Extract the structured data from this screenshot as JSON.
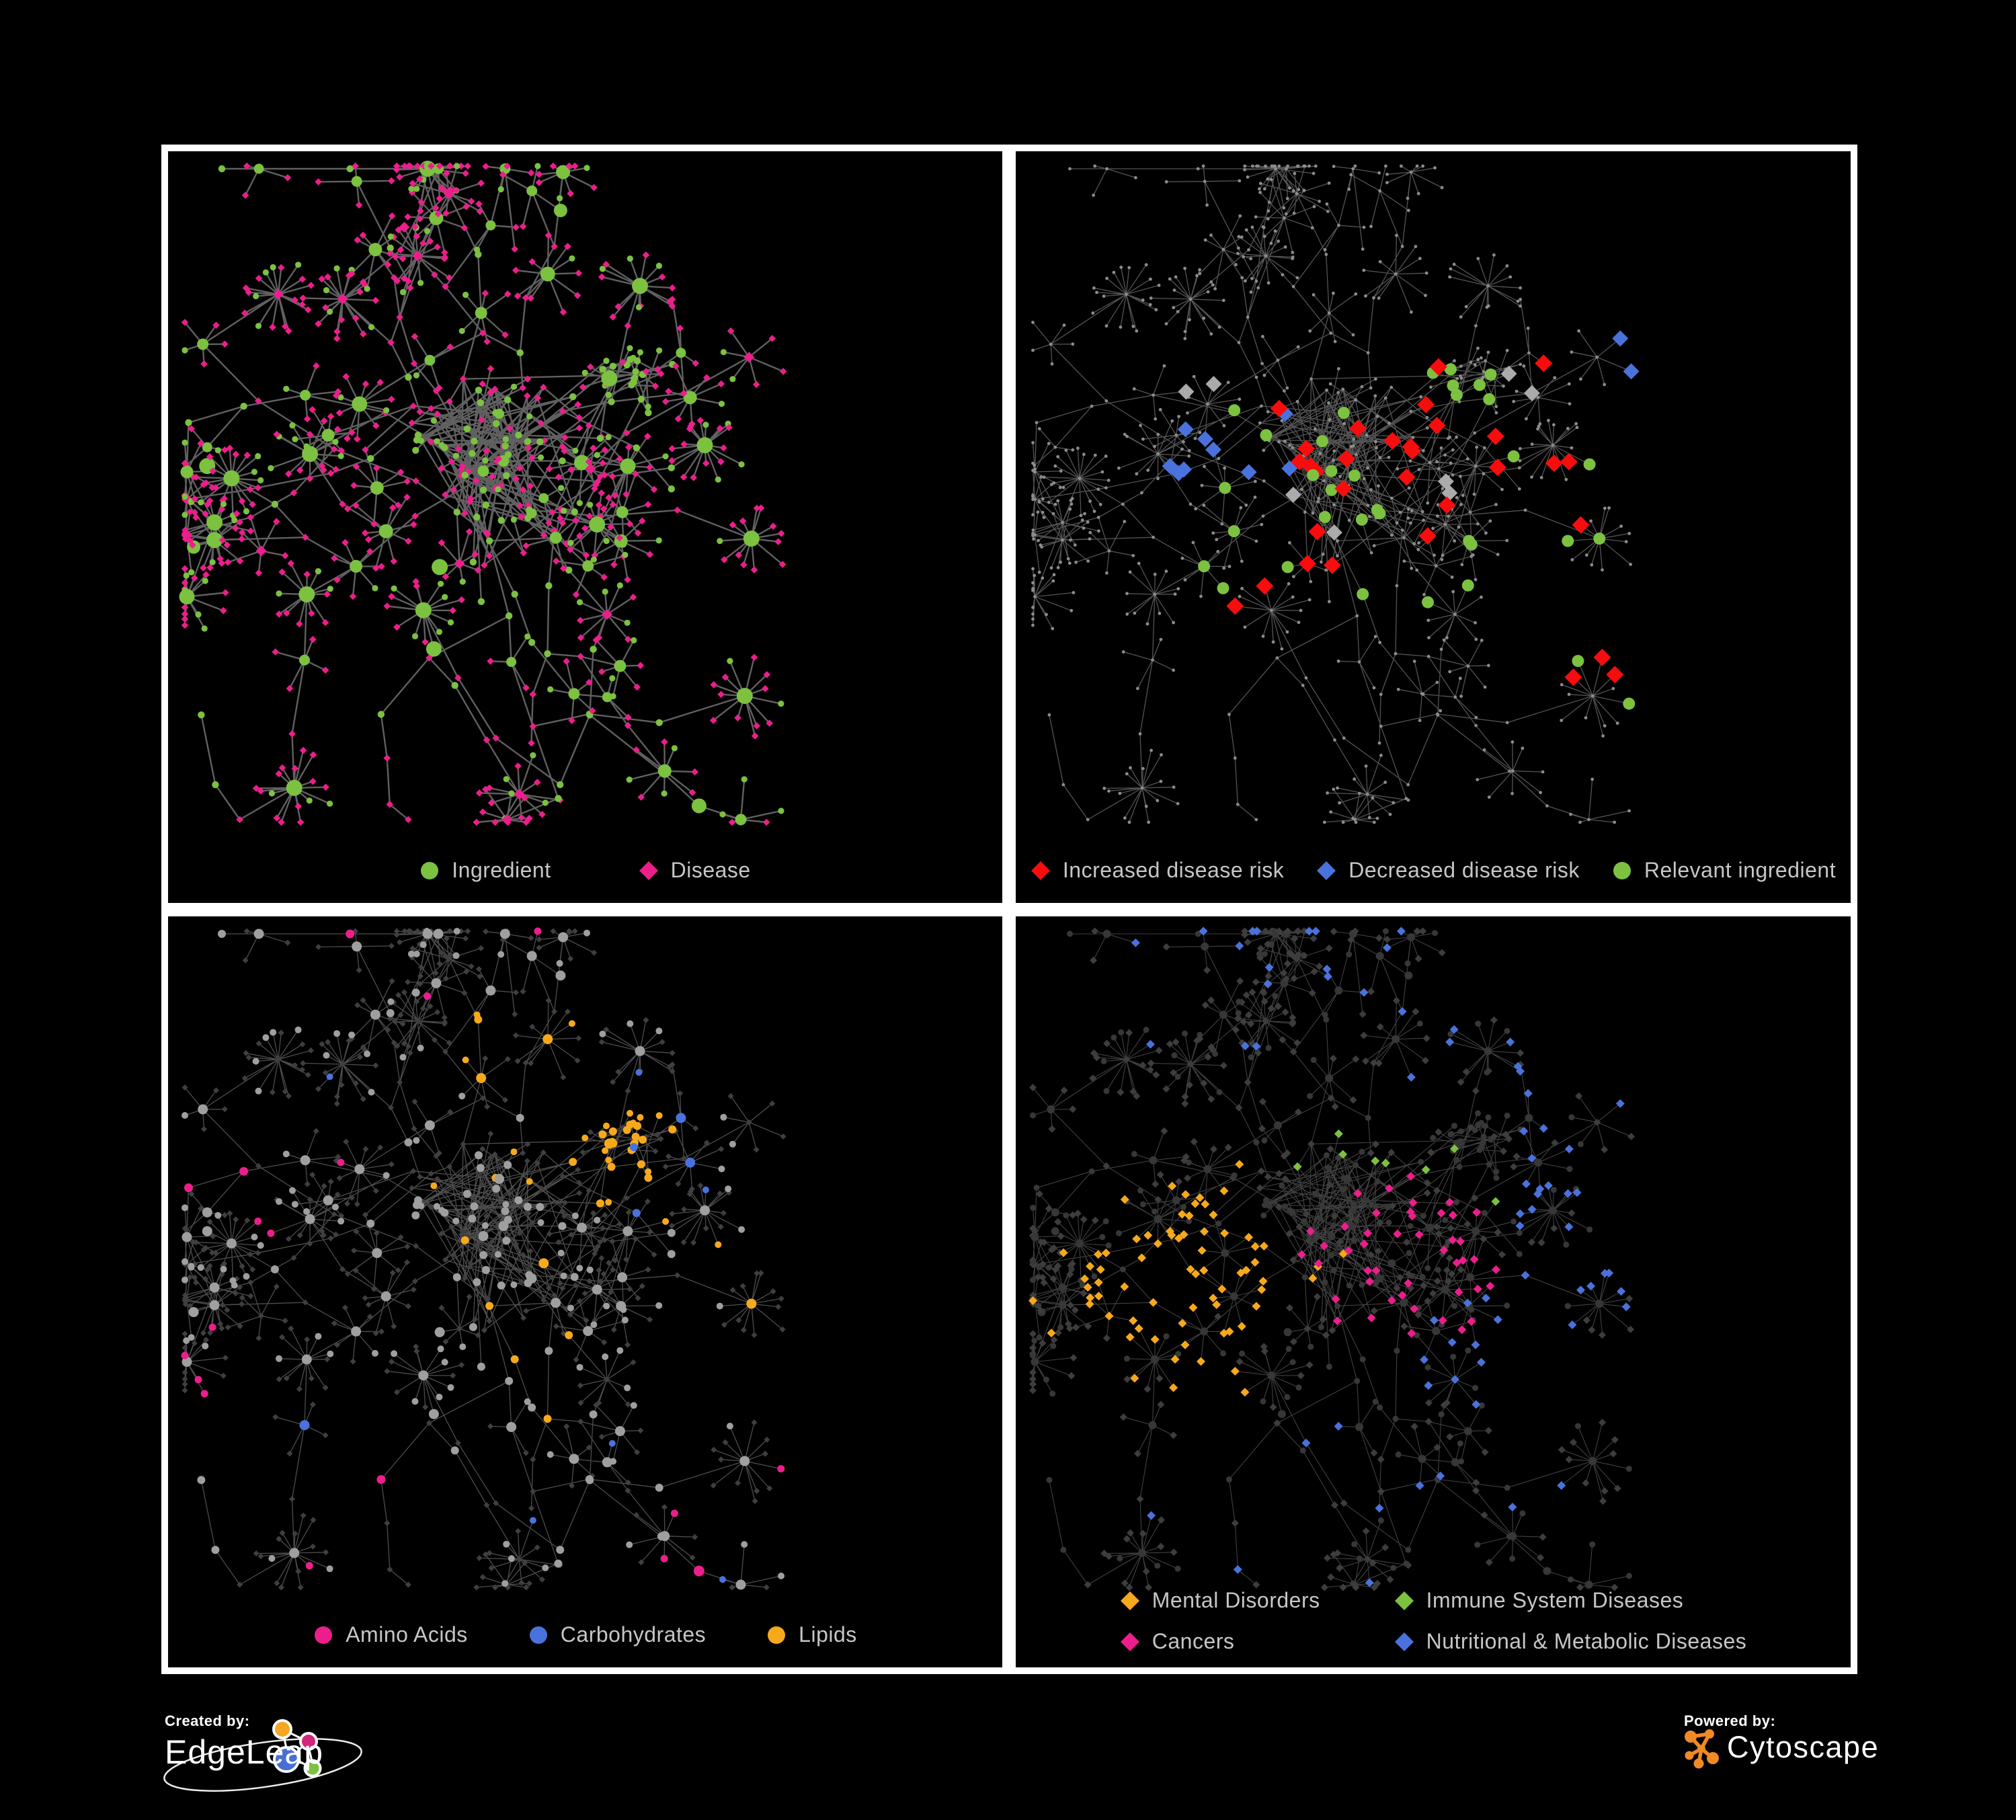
{
  "page": {
    "background": "#000000",
    "panel_border": "#ffffff",
    "legend_text_color": "#c6c6c6"
  },
  "panels": [
    {
      "name": "ingredient-disease-network",
      "legend": [
        {
          "shape": "circle",
          "color": "#7cc140",
          "label": "Ingredient"
        },
        {
          "shape": "diamond",
          "color": "#ec1e8c",
          "label": "Disease"
        }
      ],
      "style": {
        "edge": "#6a6a6a",
        "edge_width": 2.4,
        "edge_opacity": 0.9,
        "ingredient": "#7cc140",
        "disease": "#ec1e8c"
      }
    },
    {
      "name": "disease-risk-network",
      "legend": [
        {
          "shape": "diamond",
          "color": "#f70d0d",
          "label": "Increased disease risk"
        },
        {
          "shape": "diamond",
          "color": "#4a72dc",
          "label": "Decreased disease risk"
        },
        {
          "shape": "circle",
          "color": "#7cc140",
          "label": "Relevant ingredient"
        }
      ],
      "style": {
        "edge": "#5d5d5d",
        "edge_width": 1.3,
        "edge_opacity": 0.9,
        "base_node": "#8c8c8c",
        "increased": "#f70d0d",
        "decreased": "#4a72dc",
        "other_disease": "#ababab",
        "relevant": "#7cc140"
      }
    },
    {
      "name": "ingredient-class-network",
      "legend": [
        {
          "shape": "circle",
          "color": "#ec1e8c",
          "label": "Amino Acids"
        },
        {
          "shape": "circle",
          "color": "#4a72dc",
          "label": "Carbohydrates"
        },
        {
          "shape": "circle",
          "color": "#f7a91c",
          "label": "Lipids"
        }
      ],
      "style": {
        "edge": "#9a9a9a",
        "edge_width": 1.3,
        "edge_opacity": 0.5,
        "ingredient": "#9f9f9f",
        "disease": "#3f3f3f",
        "amino": "#ec1e8c",
        "carbs": "#4a72dc",
        "lipids": "#f7a91c"
      }
    },
    {
      "name": "disease-class-network",
      "legend": [
        {
          "shape": "diamond",
          "color": "#f7a91c",
          "label": "Mental Disorders"
        },
        {
          "shape": "diamond",
          "color": "#7cc140",
          "label": "Immune System Diseases"
        },
        {
          "shape": "diamond",
          "color": "#ec1e8c",
          "label": "Cancers"
        },
        {
          "shape": "diamond",
          "color": "#4a72dc",
          "label": "Nutritional & Metabolic Diseases"
        }
      ],
      "style": {
        "edge": "#777777",
        "edge_width": 1.1,
        "edge_opacity": 0.55,
        "ingredient": "#373737",
        "disease": "#3d3d3d",
        "mental": "#f7a91c",
        "immune": "#7cc140",
        "cancer": "#ec1e8c",
        "nutritional": "#4a72dc"
      }
    }
  ],
  "footer": {
    "created_by_label": "Created by:",
    "edgeleap_name": "EdgeLeap",
    "powered_by_label": "Powered by:",
    "cytoscape_name": "Cytoscape",
    "edgeleap_logo_colors": {
      "orange": "#f5a623",
      "magenta": "#d0267e",
      "blue": "#4a6fd4",
      "green": "#7cc140"
    },
    "cytoscape_logo_color": "#f08a24"
  }
}
